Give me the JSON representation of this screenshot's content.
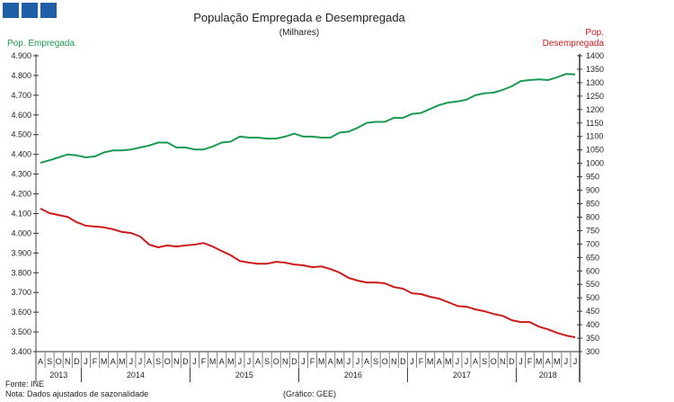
{
  "logo_squares": 3,
  "colors": {
    "logo": "#1f5fa8",
    "employed": "#1a9a50",
    "unemployed": "#cc1b1b",
    "axis": "#808080"
  },
  "chart_data": {
    "type": "line",
    "title": "População Empregada e Desempregada",
    "subtitle": "(Milhares)",
    "ylabel_left": "Pop. Empregada",
    "ylabel_right_line1": "Pop.",
    "ylabel_right_line2": "Desempregada",
    "ylim_left": [
      3400,
      4900
    ],
    "ylim_right": [
      300,
      1400
    ],
    "left_ticks": [
      "3.400",
      "3.500",
      "3.600",
      "3.700",
      "3.800",
      "3.900",
      "4.000",
      "4.100",
      "4.200",
      "4.300",
      "4.400",
      "4.500",
      "4.600",
      "4.700",
      "4.800",
      "4.900"
    ],
    "right_ticks": [
      "300",
      "350",
      "400",
      "450",
      "500",
      "550",
      "600",
      "650",
      "700",
      "750",
      "800",
      "850",
      "900",
      "950",
      "1000",
      "1050",
      "1100",
      "1150",
      "1200",
      "1250",
      "1300",
      "1350",
      "1400"
    ],
    "months": [
      "A",
      "S",
      "O",
      "N",
      "D",
      "J",
      "F",
      "M",
      "A",
      "M",
      "J",
      "J",
      "A",
      "S",
      "O",
      "N",
      "D",
      "J",
      "F",
      "M",
      "A",
      "M",
      "J",
      "J",
      "A",
      "S",
      "O",
      "N",
      "D",
      "J",
      "F",
      "M",
      "A",
      "M",
      "J",
      "J",
      "A",
      "S",
      "O",
      "N",
      "D",
      "J",
      "F",
      "M",
      "A",
      "M",
      "J",
      "J",
      "A",
      "S",
      "O",
      "N",
      "D",
      "J",
      "F",
      "M",
      "A",
      "M",
      "J",
      "J"
    ],
    "years": [
      {
        "label": "2013",
        "start": 0,
        "end": 5
      },
      {
        "label": "2014",
        "start": 5,
        "end": 17
      },
      {
        "label": "2015",
        "start": 17,
        "end": 29
      },
      {
        "label": "2016",
        "start": 29,
        "end": 41
      },
      {
        "label": "2017",
        "start": 41,
        "end": 53
      },
      {
        "label": "2018",
        "start": 53,
        "end": 60
      }
    ],
    "series": [
      {
        "name": "Pop. Empregada",
        "axis": "left",
        "values": [
          4357,
          4370,
          4385,
          4400,
          4395,
          4385,
          4390,
          4410,
          4420,
          4420,
          4425,
          4435,
          4445,
          4460,
          4460,
          4435,
          4435,
          4425,
          4425,
          4440,
          4460,
          4465,
          4490,
          4485,
          4485,
          4480,
          4480,
          4490,
          4505,
          4490,
          4490,
          4485,
          4485,
          4510,
          4515,
          4535,
          4560,
          4565,
          4565,
          4585,
          4585,
          4605,
          4610,
          4630,
          4650,
          4663,
          4668,
          4677,
          4700,
          4710,
          4713,
          4727,
          4745,
          4772,
          4777,
          4780,
          4777,
          4790,
          4808,
          4805
        ]
      },
      {
        "name": "Pop. Desempregada",
        "axis": "right",
        "values": [
          832,
          815,
          808,
          801,
          781,
          768,
          765,
          762,
          755,
          745,
          741,
          728,
          698,
          688,
          695,
          691,
          695,
          698,
          704,
          691,
          674,
          658,
          637,
          631,
          627,
          627,
          634,
          631,
          624,
          621,
          614,
          617,
          607,
          594,
          574,
          564,
          557,
          557,
          554,
          540,
          534,
          517,
          514,
          504,
          497,
          484,
          470,
          467,
          457,
          450,
          440,
          433,
          417,
          410,
          410,
          393,
          383,
          370,
          360,
          353
        ]
      }
    ]
  },
  "footer": {
    "source": "Fonte: INE",
    "note": "Nota: Dados ajustados de sazonalidade",
    "credit": "(Gráfico: GEE)"
  }
}
